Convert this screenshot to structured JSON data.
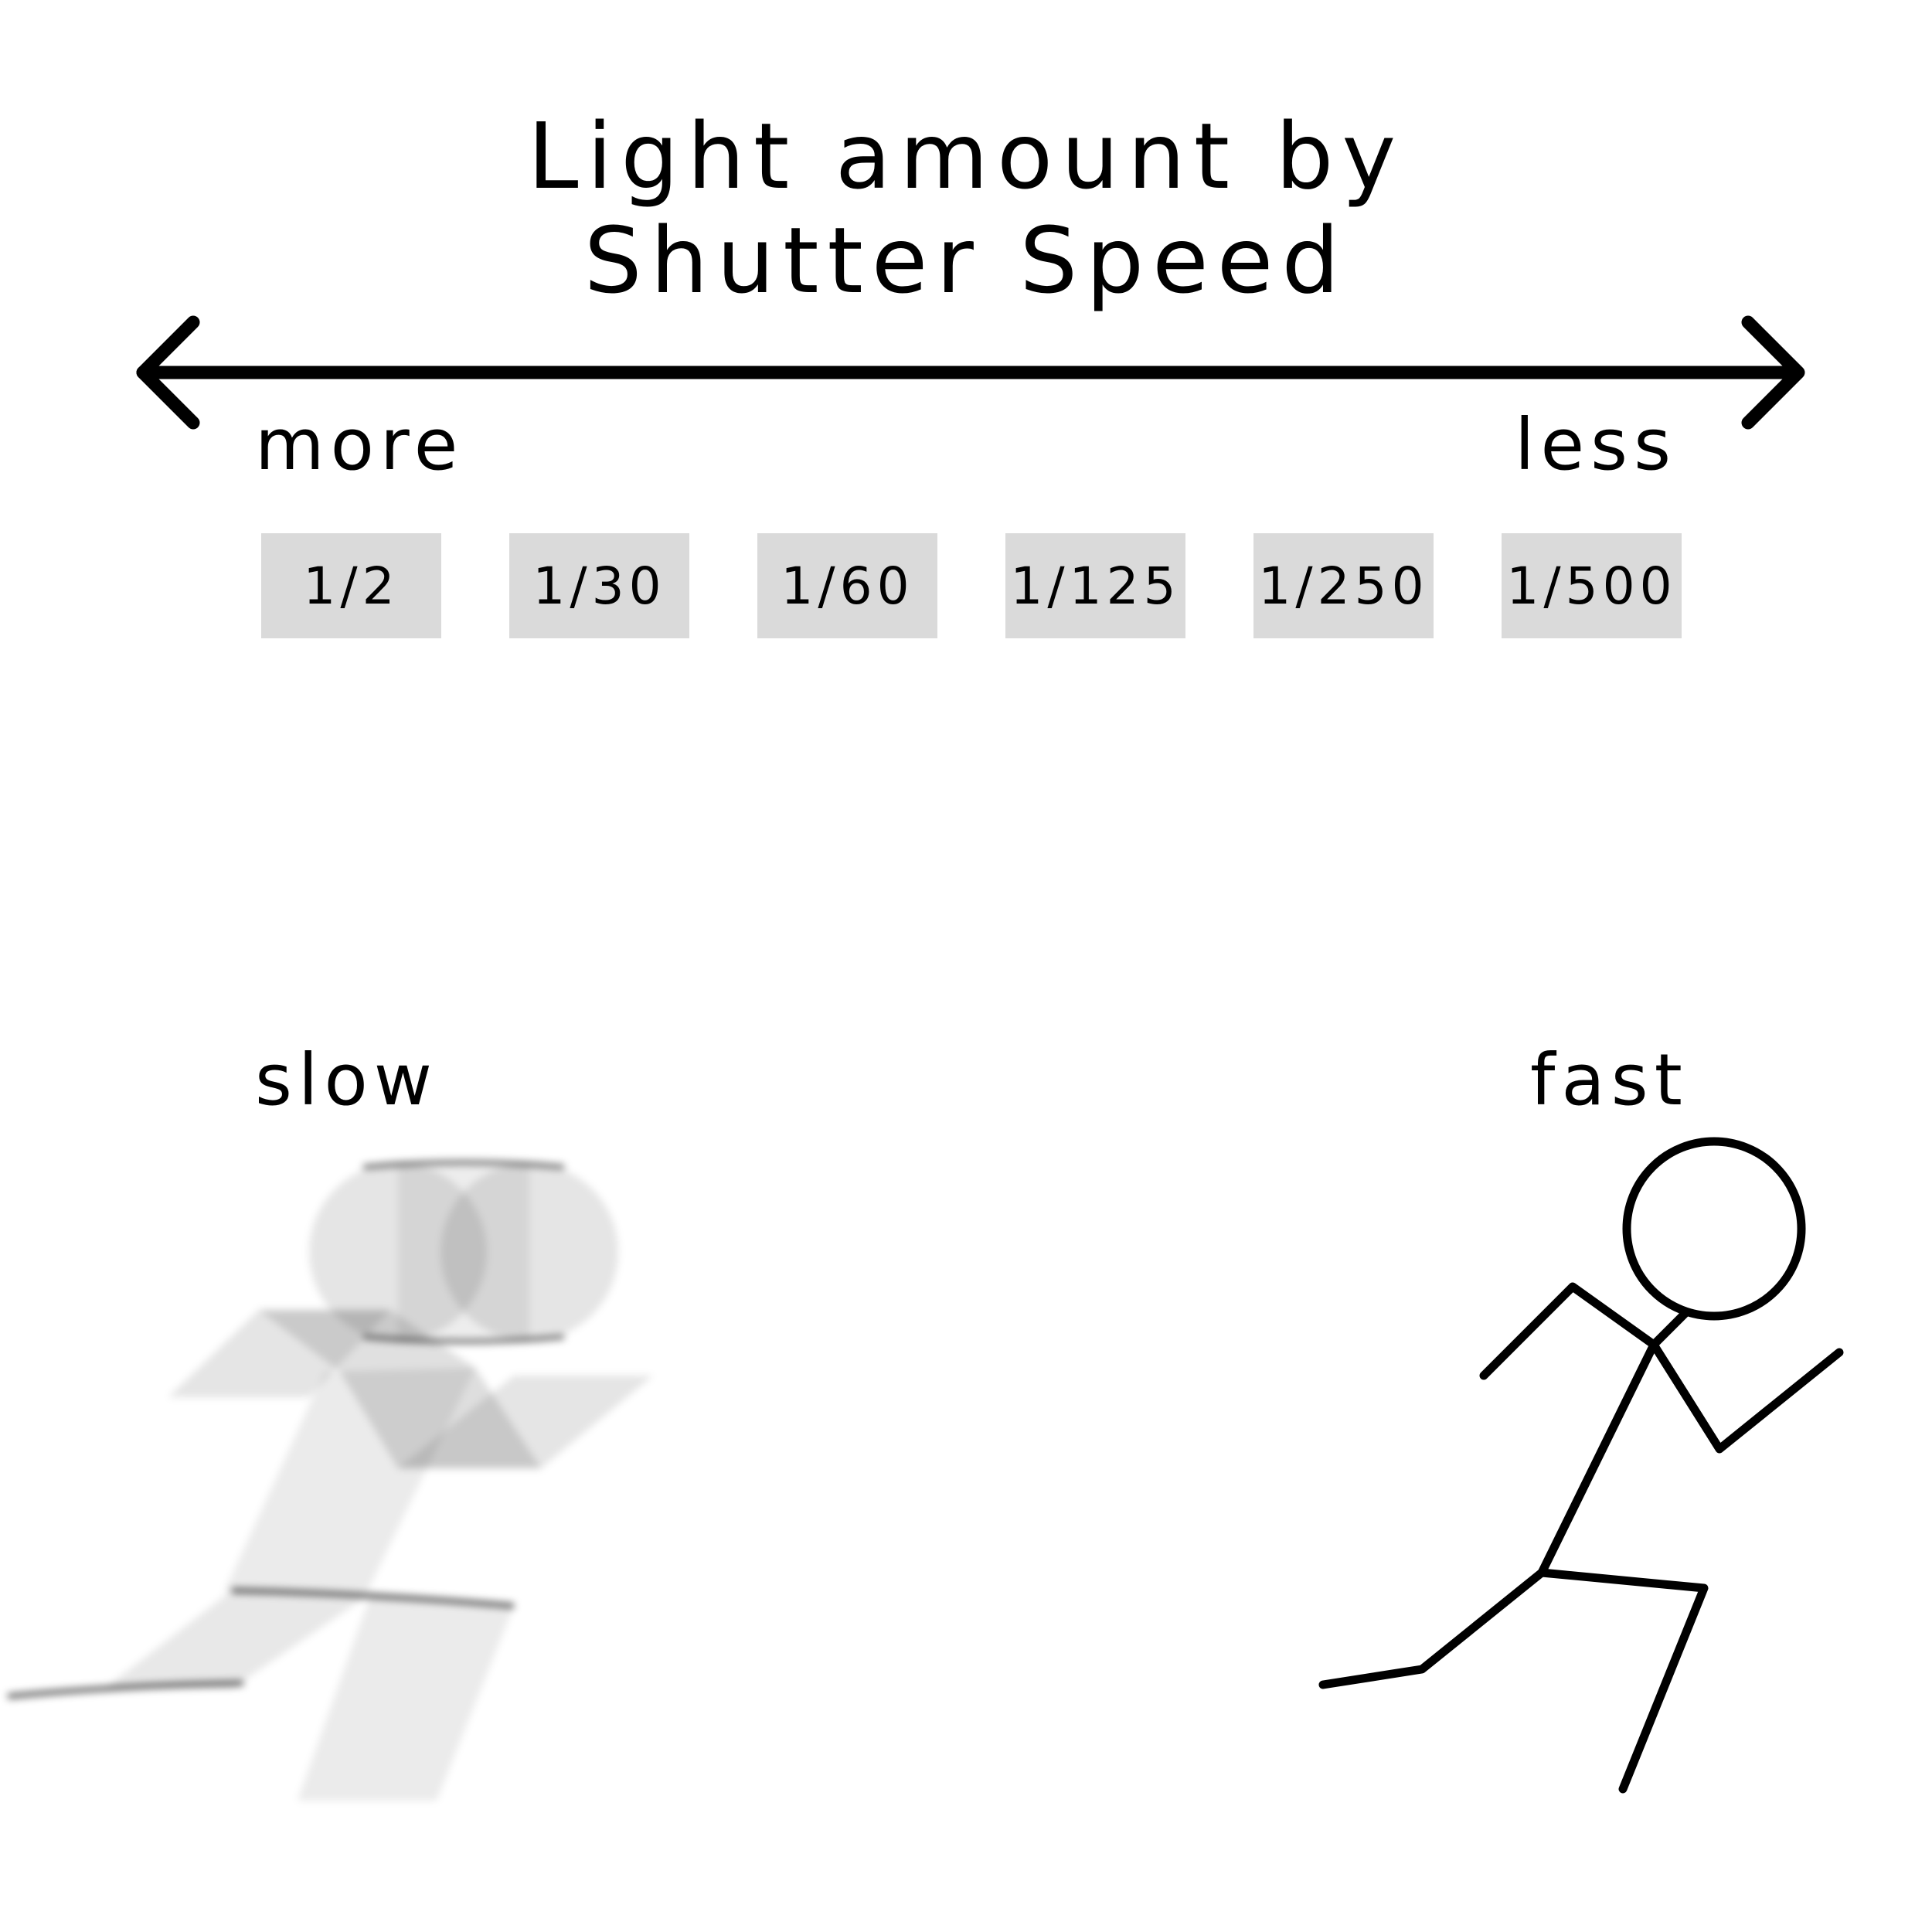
{
  "title": {
    "line1": "Light amount by",
    "line2": "Shutter Speed"
  },
  "scale": {
    "left_label": "more",
    "right_label": "less",
    "arrow": "double-headed-arrow"
  },
  "shutter_speeds": [
    "1/2",
    "1/30",
    "1/60",
    "1/125",
    "1/250",
    "1/500"
  ],
  "motion": {
    "left_label": "slow",
    "right_label": "fast",
    "left_figure": "blurred-running-stick-figure",
    "right_figure": "sharp-running-stick-figure"
  }
}
